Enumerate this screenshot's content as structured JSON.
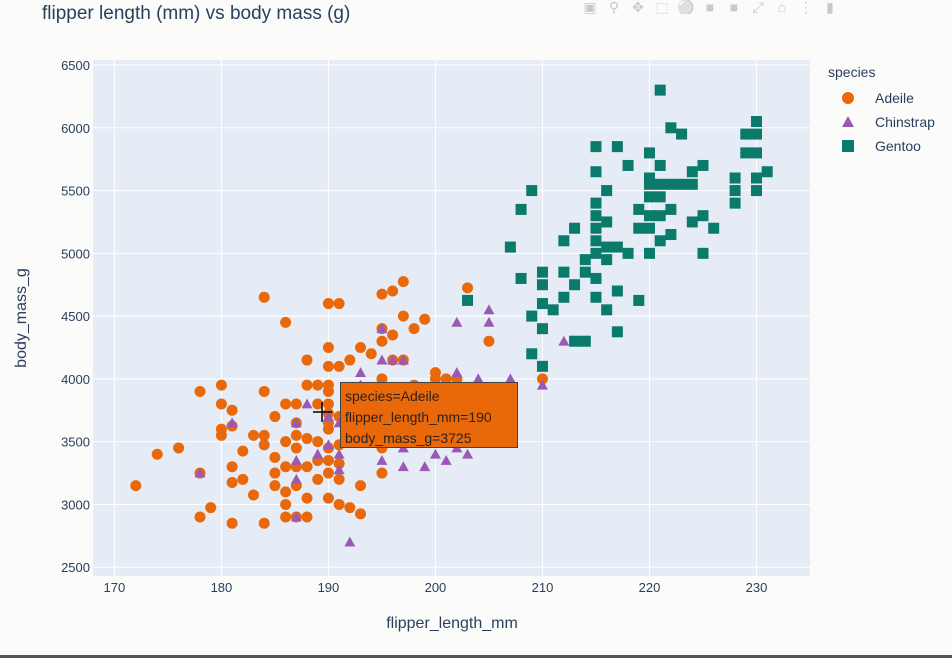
{
  "chart_data": {
    "type": "scatter",
    "title": "flipper length (mm) vs body mass (g)",
    "xlabel": "flipper_length_mm",
    "ylabel": "body_mass_g",
    "xlim": [
      168,
      235
    ],
    "ylim": [
      2430,
      6540
    ],
    "xticks": [
      170,
      180,
      190,
      200,
      210,
      220,
      230
    ],
    "yticks": [
      2500,
      3000,
      3500,
      4000,
      4500,
      5000,
      5500,
      6000,
      6500
    ],
    "grid": true,
    "legend_position": "top-right",
    "legend_title": "species",
    "series": [
      {
        "name": "Adeile",
        "color": "#e8680a",
        "marker": "circle",
        "points": [
          [
            172,
            3150
          ],
          [
            174,
            3400
          ],
          [
            176,
            3450
          ],
          [
            178,
            2900
          ],
          [
            178,
            3250
          ],
          [
            178,
            3900
          ],
          [
            179,
            2975
          ],
          [
            180,
            3550
          ],
          [
            180,
            3600
          ],
          [
            180,
            3800
          ],
          [
            180,
            3950
          ],
          [
            181,
            3175
          ],
          [
            181,
            3300
          ],
          [
            181,
            3625
          ],
          [
            181,
            3750
          ],
          [
            181,
            2850
          ],
          [
            182,
            3200
          ],
          [
            182,
            3425
          ],
          [
            183,
            3075
          ],
          [
            183,
            3550
          ],
          [
            184,
            2850
          ],
          [
            184,
            3475
          ],
          [
            184,
            3550
          ],
          [
            184,
            3900
          ],
          [
            184,
            4650
          ],
          [
            185,
            3150
          ],
          [
            185,
            3250
          ],
          [
            185,
            3375
          ],
          [
            185,
            3700
          ],
          [
            186,
            2900
          ],
          [
            186,
            3000
          ],
          [
            186,
            3100
          ],
          [
            186,
            3300
          ],
          [
            186,
            3500
          ],
          [
            186,
            3800
          ],
          [
            186,
            4450
          ],
          [
            187,
            2900
          ],
          [
            187,
            3150
          ],
          [
            187,
            3300
          ],
          [
            187,
            3450
          ],
          [
            187,
            3550
          ],
          [
            187,
            3650
          ],
          [
            187,
            3800
          ],
          [
            188,
            2900
          ],
          [
            188,
            3050
          ],
          [
            188,
            3300
          ],
          [
            188,
            3525
          ],
          [
            188,
            3950
          ],
          [
            188,
            4150
          ],
          [
            189,
            3200
          ],
          [
            189,
            3350
          ],
          [
            189,
            3500
          ],
          [
            189,
            3800
          ],
          [
            189,
            3950
          ],
          [
            190,
            3050
          ],
          [
            190,
            3250
          ],
          [
            190,
            3350
          ],
          [
            190,
            3450
          ],
          [
            190,
            3600
          ],
          [
            190,
            3650
          ],
          [
            190,
            3725
          ],
          [
            190,
            3800
          ],
          [
            190,
            3900
          ],
          [
            190,
            3950
          ],
          [
            190,
            4100
          ],
          [
            190,
            4250
          ],
          [
            190,
            4600
          ],
          [
            191,
            3000
          ],
          [
            191,
            3200
          ],
          [
            191,
            3325
          ],
          [
            191,
            3475
          ],
          [
            191,
            3700
          ],
          [
            191,
            4100
          ],
          [
            191,
            4600
          ],
          [
            192,
            2975
          ],
          [
            192,
            3500
          ],
          [
            192,
            3800
          ],
          [
            192,
            4150
          ],
          [
            193,
            2925
          ],
          [
            193,
            3150
          ],
          [
            193,
            3500
          ],
          [
            193,
            3800
          ],
          [
            193,
            4250
          ],
          [
            194,
            3500
          ],
          [
            194,
            4200
          ],
          [
            195,
            3250
          ],
          [
            195,
            3450
          ],
          [
            195,
            3550
          ],
          [
            195,
            3850
          ],
          [
            195,
            4000
          ],
          [
            195,
            4300
          ],
          [
            195,
            4400
          ],
          [
            195,
            4675
          ],
          [
            196,
            3550
          ],
          [
            196,
            3700
          ],
          [
            196,
            3900
          ],
          [
            196,
            4150
          ],
          [
            196,
            4350
          ],
          [
            196,
            4700
          ],
          [
            197,
            3900
          ],
          [
            197,
            4150
          ],
          [
            197,
            4500
          ],
          [
            197,
            4775
          ],
          [
            198,
            3950
          ],
          [
            198,
            4400
          ],
          [
            199,
            3925
          ],
          [
            199,
            4475
          ],
          [
            200,
            4000
          ],
          [
            200,
            4050
          ],
          [
            201,
            3900
          ],
          [
            201,
            4000
          ],
          [
            202,
            4000
          ],
          [
            203,
            3900
          ],
          [
            203,
            4725
          ],
          [
            205,
            4300
          ],
          [
            210,
            4000
          ]
        ]
      },
      {
        "name": "Chinstrap",
        "color": "#9b59b6",
        "marker": "triangle-up",
        "points": [
          [
            178,
            3250
          ],
          [
            181,
            3650
          ],
          [
            187,
            2900
          ],
          [
            187,
            3200
          ],
          [
            187,
            3350
          ],
          [
            187,
            3650
          ],
          [
            188,
            3800
          ],
          [
            189,
            3400
          ],
          [
            190,
            3475
          ],
          [
            190,
            3700
          ],
          [
            191,
            3650
          ],
          [
            191,
            3400
          ],
          [
            191,
            3275
          ],
          [
            192,
            2700
          ],
          [
            193,
            3550
          ],
          [
            193,
            3650
          ],
          [
            193,
            3950
          ],
          [
            193,
            4050
          ],
          [
            195,
            3350
          ],
          [
            195,
            3600
          ],
          [
            195,
            3750
          ],
          [
            195,
            3950
          ],
          [
            195,
            4150
          ],
          [
            195,
            4400
          ],
          [
            196,
            3550
          ],
          [
            196,
            3700
          ],
          [
            196,
            3850
          ],
          [
            196,
            4150
          ],
          [
            197,
            3300
          ],
          [
            197,
            3450
          ],
          [
            197,
            3600
          ],
          [
            197,
            3750
          ],
          [
            197,
            4150
          ],
          [
            198,
            3600
          ],
          [
            198,
            3750
          ],
          [
            199,
            3300
          ],
          [
            199,
            3500
          ],
          [
            199,
            3750
          ],
          [
            200,
            3400
          ],
          [
            201,
            3350
          ],
          [
            201,
            3550
          ],
          [
            201,
            3700
          ],
          [
            201,
            3900
          ],
          [
            202,
            3450
          ],
          [
            202,
            3850
          ],
          [
            202,
            4050
          ],
          [
            202,
            4450
          ],
          [
            203,
            3400
          ],
          [
            203,
            3700
          ],
          [
            203,
            3900
          ],
          [
            204,
            4000
          ],
          [
            205,
            3600
          ],
          [
            205,
            4450
          ],
          [
            205,
            4550
          ],
          [
            206,
            3850
          ],
          [
            207,
            4000
          ],
          [
            210,
            3950
          ],
          [
            212,
            4300
          ]
        ]
      },
      {
        "name": "Gentoo",
        "color": "#0a7a6b",
        "marker": "square",
        "points": [
          [
            203,
            4625
          ],
          [
            207,
            5050
          ],
          [
            208,
            4800
          ],
          [
            208,
            5350
          ],
          [
            209,
            4200
          ],
          [
            209,
            4500
          ],
          [
            209,
            5500
          ],
          [
            210,
            4100
          ],
          [
            210,
            4400
          ],
          [
            210,
            4600
          ],
          [
            210,
            4750
          ],
          [
            210,
            4850
          ],
          [
            211,
            4550
          ],
          [
            212,
            4650
          ],
          [
            212,
            4850
          ],
          [
            212,
            5100
          ],
          [
            213,
            4300
          ],
          [
            213,
            4750
          ],
          [
            213,
            5200
          ],
          [
            214,
            4300
          ],
          [
            214,
            4850
          ],
          [
            214,
            4950
          ],
          [
            215,
            4650
          ],
          [
            215,
            4800
          ],
          [
            215,
            5000
          ],
          [
            215,
            5100
          ],
          [
            215,
            5200
          ],
          [
            215,
            5300
          ],
          [
            215,
            5400
          ],
          [
            215,
            5650
          ],
          [
            215,
            5850
          ],
          [
            216,
            4550
          ],
          [
            216,
            4950
          ],
          [
            216,
            5050
          ],
          [
            216,
            5250
          ],
          [
            216,
            5500
          ],
          [
            217,
            4375
          ],
          [
            217,
            4700
          ],
          [
            217,
            5050
          ],
          [
            217,
            5850
          ],
          [
            218,
            5000
          ],
          [
            218,
            5700
          ],
          [
            219,
            4625
          ],
          [
            219,
            5200
          ],
          [
            219,
            5350
          ],
          [
            220,
            5000
          ],
          [
            220,
            5200
          ],
          [
            220,
            5300
          ],
          [
            220,
            5450
          ],
          [
            220,
            5550
          ],
          [
            220,
            5600
          ],
          [
            220,
            5800
          ],
          [
            221,
            5100
          ],
          [
            221,
            5300
          ],
          [
            221,
            5450
          ],
          [
            221,
            5550
          ],
          [
            221,
            5700
          ],
          [
            221,
            6300
          ],
          [
            222,
            5150
          ],
          [
            222,
            5350
          ],
          [
            222,
            5550
          ],
          [
            222,
            6000
          ],
          [
            223,
            5550
          ],
          [
            223,
            5950
          ],
          [
            224,
            5250
          ],
          [
            224,
            5550
          ],
          [
            224,
            5650
          ],
          [
            225,
            5000
          ],
          [
            225,
            5300
          ],
          [
            225,
            5700
          ],
          [
            226,
            5200
          ],
          [
            228,
            5400
          ],
          [
            228,
            5500
          ],
          [
            228,
            5600
          ],
          [
            229,
            5800
          ],
          [
            229,
            5950
          ],
          [
            230,
            5500
          ],
          [
            230,
            5600
          ],
          [
            230,
            5800
          ],
          [
            230,
            5950
          ],
          [
            230,
            6050
          ],
          [
            231,
            5650
          ]
        ]
      }
    ],
    "hover": {
      "series": "Adeile",
      "x": 190,
      "y": 3725,
      "lines": [
        "species=Adeile",
        "flipper_length_mm=190",
        "body_mass_g=3725"
      ]
    }
  },
  "modebar": {
    "icons": [
      "camera-icon",
      "zoom-icon",
      "pan-icon",
      "box-select-icon",
      "lasso-icon",
      "zoom-in-icon",
      "zoom-out-icon",
      "autoscale-icon",
      "reset-axes-icon",
      "spike-lines-icon",
      "compare-hover-icon"
    ]
  },
  "colors": {
    "plot_bg": "#e5ecf6",
    "grid": "#ffffff",
    "text": "#2a3f5f"
  }
}
